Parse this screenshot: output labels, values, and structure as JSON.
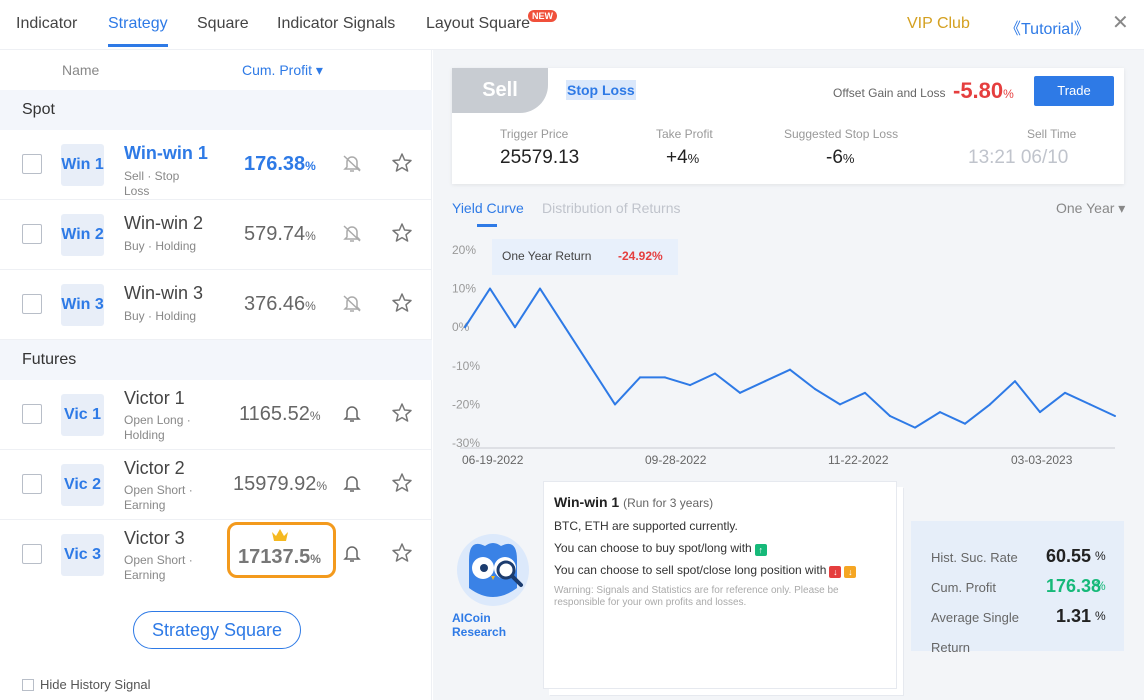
{
  "tabs": [
    {
      "label": "Indicator"
    },
    {
      "label": "Strategy"
    },
    {
      "label": "Square"
    },
    {
      "label": "Indicator Signals"
    },
    {
      "label": "Layout Square"
    }
  ],
  "new_badge": "NEW",
  "vip": "VIP Club",
  "tutorial": "《Tutorial》",
  "close": "✕",
  "list": {
    "col_name": "Name",
    "col_profit": "Cum. Profit ▾",
    "section_spot": "Spot",
    "section_futures": "Futures",
    "rows": [
      {
        "tag": "Win 1",
        "name": "Win-win 1",
        "sub": "Sell · Stop Loss",
        "value": "176.38",
        "pct": "%"
      },
      {
        "tag": "Win 2",
        "name": "Win-win 2",
        "sub": "Buy · Holding",
        "value": "579.74",
        "pct": "%"
      },
      {
        "tag": "Win 3",
        "name": "Win-win 3",
        "sub": "Buy · Holding",
        "value": "376.46",
        "pct": "%"
      },
      {
        "tag": "Vic 1",
        "name": "Victor 1",
        "sub": "Open Long · Holding",
        "value": "1165.52",
        "pct": "%"
      },
      {
        "tag": "Vic 2",
        "name": "Victor 2",
        "sub": "Open Short · Earning",
        "value": "15979.92",
        "pct": "%"
      },
      {
        "tag": "Vic 3",
        "name": "Victor 3",
        "sub": "Open Short · Earning",
        "value": "17137.5",
        "pct": "%"
      }
    ],
    "square_button": "Strategy Square",
    "hide_history": "Hide History Signal"
  },
  "signal": {
    "side": "Sell",
    "type": "Stop Loss",
    "offset_label": "Offset Gain and Loss",
    "offset_value": "-5.80",
    "offset_pct": "%",
    "trade": "Trade",
    "trigger_label": "Trigger Price",
    "trigger_value": "25579.13",
    "tp_label": "Take Profit",
    "tp_value": "+4",
    "tp_pct": "%",
    "sl_label": "Suggested Stop Loss",
    "sl_value": "-6",
    "sl_pct": "%",
    "time_label": "Sell Time",
    "time_value": "13:21 06/10"
  },
  "chart_tabs": {
    "yield": "Yield Curve",
    "dist": "Distribution of Returns",
    "period": "One Year ▾"
  },
  "tooltip": {
    "label": "One Year Return",
    "value": "-24.92%"
  },
  "chart_data": {
    "type": "line",
    "title": "",
    "x_ticks": [
      "06-19-2022",
      "09-28-2022",
      "11-22-2022",
      "03-03-2023"
    ],
    "y_ticks": [
      "20%",
      "10%",
      "0%",
      "-10%",
      "-20%",
      "-30%"
    ],
    "ylim": [
      -30,
      20
    ],
    "color": "#2e7ae6",
    "values": [
      0,
      10,
      0,
      10,
      0,
      -10,
      -20,
      -13,
      -13,
      -15,
      -12,
      -17,
      -14,
      -11,
      -16,
      -20,
      -17,
      -23,
      -26,
      -22,
      -25,
      -20,
      -14,
      -22,
      -17,
      -20,
      -23
    ]
  },
  "info": {
    "title": "Win-win 1",
    "run": "(Run for 3 years)",
    "line1": "BTC, ETH are supported currently.",
    "line2": "You can choose to buy spot/long with",
    "line3": "You can choose to sell spot/close long position with",
    "warning": "Warning: Signals and Statistics are for reference only. Please be responsible for your own profits and losses.",
    "owl_label_1": "AICoin",
    "owl_label_2": "Research"
  },
  "stats": {
    "rate_label": "Hist. Suc. Rate",
    "rate_value": "60.55",
    "rate_pct": "%",
    "profit_label": "Cum. Profit",
    "profit_value": "176.38",
    "profit_pct": "%",
    "avg_label_1": "Average Single",
    "avg_label_2": "Return",
    "avg_value": "1.31",
    "avg_pct": "%"
  }
}
